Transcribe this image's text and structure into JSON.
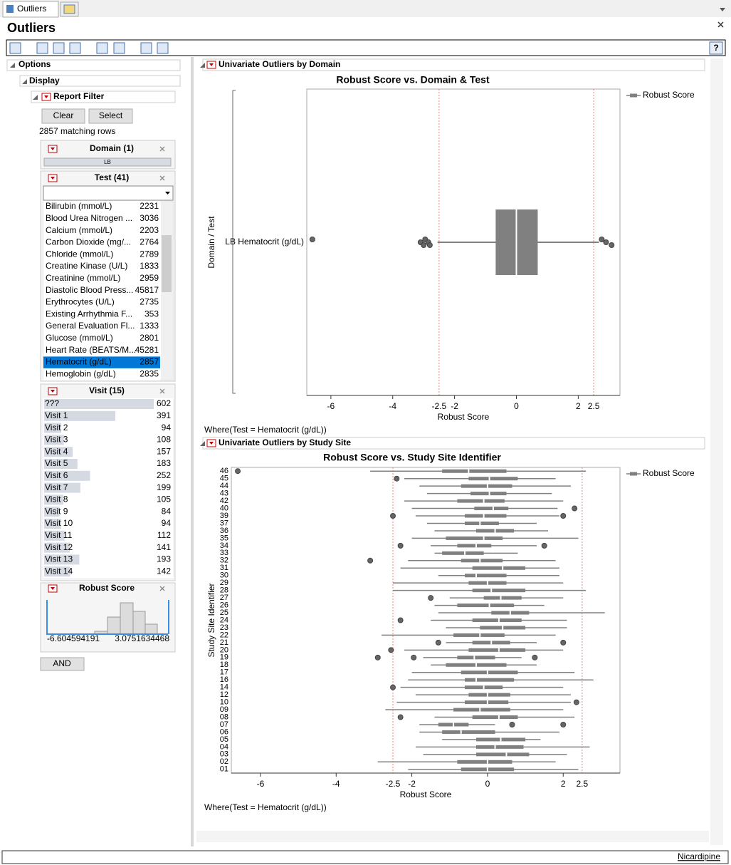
{
  "tabs": [
    "Outliers"
  ],
  "window_title": "Outliers",
  "options": "Options",
  "display": "Display",
  "report_filter": {
    "title": "Report Filter",
    "buttons": [
      "Clear",
      "Select"
    ],
    "matching_rows": "2857 matching rows",
    "domain": {
      "title": "Domain (1)",
      "items": [
        "LB"
      ]
    },
    "test": {
      "title": "Test (41)",
      "selected_index": 13,
      "items": [
        {
          "name": "Bilirubin (mmol/L)",
          "count": 2231
        },
        {
          "name": "Blood Urea Nitrogen ...",
          "count": 3036
        },
        {
          "name": "Calcium (mmol/L)",
          "count": 2203
        },
        {
          "name": "Carbon Dioxide (mg/...",
          "count": 2764
        },
        {
          "name": "Chloride (mmol/L)",
          "count": 2789
        },
        {
          "name": "Creatine Kinase (U/L)",
          "count": 1833
        },
        {
          "name": "Creatinine (mmol/L)",
          "count": 2959
        },
        {
          "name": "Diastolic Blood Press...",
          "count": 45817
        },
        {
          "name": "Erythrocytes (U/L)",
          "count": 2735
        },
        {
          "name": "Existing Arrhythmia F...",
          "count": 353
        },
        {
          "name": "General Evaluation Fl...",
          "count": 1333
        },
        {
          "name": "Glucose (mmol/L)",
          "count": 2801
        },
        {
          "name": "Heart Rate (BEATS/M...",
          "count": 45281
        },
        {
          "name": "Hematocrit (g/dL)",
          "count": 2857
        },
        {
          "name": "Hemoglobin (g/dL)",
          "count": 2835
        }
      ]
    },
    "visit": {
      "title": "Visit (15)",
      "items": [
        {
          "name": "???",
          "count": 602
        },
        {
          "name": "Visit 1",
          "count": 391
        },
        {
          "name": "Visit 2",
          "count": 94
        },
        {
          "name": "Visit 3",
          "count": 108
        },
        {
          "name": "Visit 4",
          "count": 157
        },
        {
          "name": "Visit 5",
          "count": 183
        },
        {
          "name": "Visit 6",
          "count": 252
        },
        {
          "name": "Visit 7",
          "count": 199
        },
        {
          "name": "Visit 8",
          "count": 105
        },
        {
          "name": "Visit 9",
          "count": 84
        },
        {
          "name": "Visit 10",
          "count": 94
        },
        {
          "name": "Visit 11",
          "count": 112
        },
        {
          "name": "Visit 12",
          "count": 141
        },
        {
          "name": "Visit 13",
          "count": 193
        },
        {
          "name": "Visit 14",
          "count": 142
        }
      ]
    },
    "robust_score": {
      "title": "Robust Score",
      "min": "-6.604594191",
      "max": "3.0751634468"
    },
    "and_button": "AND"
  },
  "chart_data": [
    {
      "type": "boxplot",
      "outline_title": "Univariate Outliers by Domain",
      "title": "Robust Score vs. Domain & Test",
      "x_label": "Robust Score",
      "y_label": "Domain / Test",
      "categories": [
        "LB Hematocrit (g/dL)"
      ],
      "series": [
        {
          "name": "Robust Score",
          "color": "#808080"
        }
      ],
      "boxes": [
        {
          "min": -2.55,
          "q1": -0.67,
          "median": 0,
          "q3": 0.69,
          "max": 2.67,
          "outliers": [
            -6.6,
            -3.1,
            -3.0,
            -2.95,
            -2.85,
            -2.8,
            2.76,
            2.9,
            3.08
          ]
        }
      ],
      "xlim": [
        -6.78,
        3.35
      ],
      "xticks": [
        -6,
        -4,
        -2,
        0,
        2
      ],
      "reference_lines": [
        -2.5,
        2.5
      ],
      "reference_color": "#f08080",
      "footer": "Where(Test = Hematocrit (g/dL))"
    },
    {
      "type": "boxplot",
      "outline_title": "Univariate Outliers by Study Site",
      "title": "Robust Score vs. Study Site Identifier",
      "x_label": "Robust Score",
      "y_label": "Study Site Identifier",
      "categories": [
        "46",
        "45",
        "44",
        "43",
        "42",
        "40",
        "39",
        "37",
        "36",
        "35",
        "34",
        "33",
        "32",
        "31",
        "30",
        "29",
        "28",
        "27",
        "26",
        "25",
        "24",
        "23",
        "22",
        "21",
        "20",
        "19",
        "18",
        "17",
        "16",
        "14",
        "12",
        "10",
        "09",
        "08",
        "07",
        "06",
        "05",
        "04",
        "03",
        "02",
        "01"
      ],
      "series": [
        {
          "name": "Robust Score",
          "color": "#808080"
        }
      ],
      "boxes": [
        {
          "min": -3.1,
          "q1": -1.2,
          "median": -0.5,
          "q3": 0.5,
          "max": 2.6,
          "outliers": [
            -6.6
          ]
        },
        {
          "min": -2.2,
          "q1": -0.5,
          "median": 0.05,
          "q3": 0.8,
          "max": 1.8,
          "outliers": [
            -2.4
          ]
        },
        {
          "min": -1.8,
          "q1": -0.7,
          "median": 0,
          "q3": 0.65,
          "max": 2.2,
          "outliers": []
        },
        {
          "min": -1.6,
          "q1": -0.45,
          "median": 0.05,
          "q3": 0.5,
          "max": 1.7,
          "outliers": []
        },
        {
          "min": -2.2,
          "q1": -0.8,
          "median": -0.1,
          "q3": 0.45,
          "max": 2.0,
          "outliers": []
        },
        {
          "min": -2.0,
          "q1": -0.35,
          "median": 0.15,
          "q3": 0.55,
          "max": 1.85,
          "outliers": [
            2.3
          ]
        },
        {
          "min": -1.9,
          "q1": -0.6,
          "median": -0.1,
          "q3": 0.5,
          "max": 1.9,
          "outliers": [
            -2.5,
            2.0
          ]
        },
        {
          "min": -1.6,
          "q1": -0.6,
          "median": -0.2,
          "q3": 0.3,
          "max": 1.3,
          "outliers": []
        },
        {
          "min": -1.4,
          "q1": -0.3,
          "median": 0.2,
          "q3": 0.7,
          "max": 1.6,
          "outliers": []
        },
        {
          "min": -2.0,
          "q1": -1.1,
          "median": -0.1,
          "q3": 0.4,
          "max": 2.4,
          "outliers": []
        },
        {
          "min": -1.5,
          "q1": -0.8,
          "median": -0.3,
          "q3": 0.1,
          "max": 1.3,
          "outliers": [
            -2.3,
            1.5
          ]
        },
        {
          "min": -1.4,
          "q1": -1.2,
          "median": -0.6,
          "q3": -0.1,
          "max": 0.8,
          "outliers": []
        },
        {
          "min": -2.1,
          "q1": -0.7,
          "median": -0.2,
          "q3": 0.4,
          "max": 1.8,
          "outliers": [
            -3.1
          ]
        },
        {
          "min": -2.3,
          "q1": -0.4,
          "median": 0.4,
          "q3": 1.0,
          "max": 1.9,
          "outliers": []
        },
        {
          "min": -1.3,
          "q1": -0.6,
          "median": -0.3,
          "q3": 0.5,
          "max": 1.9,
          "outliers": []
        },
        {
          "min": -2.5,
          "q1": -0.5,
          "median": 0,
          "q3": 0.5,
          "max": 2.0,
          "outliers": []
        },
        {
          "min": -2.5,
          "q1": -0.4,
          "median": 0.1,
          "q3": 1.0,
          "max": 2.6,
          "outliers": []
        },
        {
          "min": -1.0,
          "q1": -0.1,
          "median": 0.35,
          "q3": 0.9,
          "max": 2.0,
          "outliers": [
            -1.5
          ]
        },
        {
          "min": -1.4,
          "q1": -0.8,
          "median": 0.05,
          "q3": 0.7,
          "max": 1.5,
          "outliers": []
        },
        {
          "min": -1.3,
          "q1": 0.1,
          "median": 0.6,
          "q3": 1.1,
          "max": 3.1,
          "outliers": []
        },
        {
          "min": -1.5,
          "q1": -0.4,
          "median": 0.3,
          "q3": 0.9,
          "max": 2.1,
          "outliers": [
            -2.3
          ]
        },
        {
          "min": -1.1,
          "q1": -0.2,
          "median": 0.4,
          "q3": 1.0,
          "max": 2.1,
          "outliers": []
        },
        {
          "min": -2.8,
          "q1": -0.9,
          "median": -0.2,
          "q3": 0.45,
          "max": 1.8,
          "outliers": []
        },
        {
          "min": -1.1,
          "q1": -0.4,
          "median": 0.1,
          "q3": 0.6,
          "max": 1.3,
          "outliers": [
            -1.3,
            2.0
          ]
        },
        {
          "min": -2.2,
          "q1": -0.5,
          "median": 0.3,
          "q3": 1.0,
          "max": 2.0,
          "outliers": [
            -2.55
          ]
        },
        {
          "min": -1.7,
          "q1": -0.8,
          "median": -0.35,
          "q3": 0.2,
          "max": 0.9,
          "outliers": [
            -2.9,
            -1.95,
            1.25
          ]
        },
        {
          "min": -1.5,
          "q1": -1.1,
          "median": -0.3,
          "q3": 0.5,
          "max": 1.3,
          "outliers": []
        },
        {
          "min": -2.0,
          "q1": -0.7,
          "median": 0,
          "q3": 0.8,
          "max": 2.3,
          "outliers": []
        },
        {
          "min": -2.1,
          "q1": -0.6,
          "median": -0.3,
          "q3": 0.7,
          "max": 2.8,
          "outliers": []
        },
        {
          "min": -2.3,
          "q1": -0.6,
          "median": -0.1,
          "q3": 0.4,
          "max": 2.0,
          "outliers": [
            -2.5
          ]
        },
        {
          "min": -1.9,
          "q1": -0.5,
          "median": 0,
          "q3": 0.6,
          "max": 2.2,
          "outliers": []
        },
        {
          "min": -2.4,
          "q1": -0.6,
          "median": 0,
          "q3": 0.55,
          "max": 2.2,
          "outliers": [
            2.35
          ]
        },
        {
          "min": -2.7,
          "q1": -0.9,
          "median": -0.2,
          "q3": 0.6,
          "max": 2.0,
          "outliers": []
        },
        {
          "min": -1.4,
          "q1": -0.4,
          "median": 0.3,
          "q3": 0.8,
          "max": 2.3,
          "outliers": [
            -2.3
          ]
        },
        {
          "min": -1.8,
          "q1": -1.3,
          "median": -0.9,
          "q3": -0.5,
          "max": 0.2,
          "outliers": [
            0.65,
            2.0
          ]
        },
        {
          "min": -1.8,
          "q1": -1.2,
          "median": -0.7,
          "q3": 0.2,
          "max": 1.9,
          "outliers": []
        },
        {
          "min": -1.2,
          "q1": -0.3,
          "median": 0.35,
          "q3": 1.0,
          "max": 1.4,
          "outliers": []
        },
        {
          "min": -1.9,
          "q1": -0.3,
          "median": 0.2,
          "q3": 0.95,
          "max": 2.7,
          "outliers": []
        },
        {
          "min": -1.7,
          "q1": -0.3,
          "median": 0.5,
          "q3": 1.1,
          "max": 2.1,
          "outliers": []
        },
        {
          "min": -2.9,
          "q1": -0.8,
          "median": 0,
          "q3": 0.65,
          "max": 1.8,
          "outliers": []
        },
        {
          "min": -2.1,
          "q1": -0.7,
          "median": 0,
          "q3": 0.7,
          "max": 2.4,
          "outliers": []
        }
      ],
      "xlim": [
        -6.77,
        3.5
      ],
      "xticks": [
        -6,
        -4,
        -2,
        0,
        2
      ],
      "reference_lines": [
        -2.5,
        2.5
      ],
      "reference_color": "#f08080",
      "footer": "Where(Test = Hematocrit (g/dL))"
    }
  ],
  "status_link": "Nicardipine"
}
